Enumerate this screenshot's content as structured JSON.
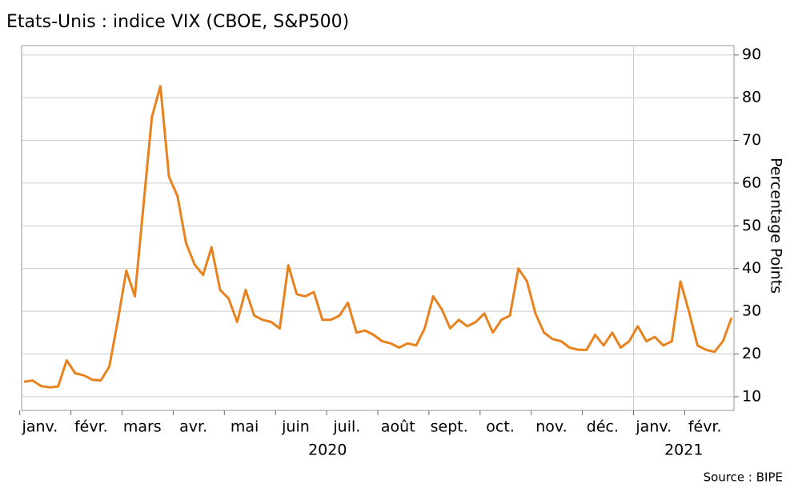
{
  "chart_data": {
    "type": "line",
    "title": "Etats-Unis : indice VIX (CBOE, S&P500)",
    "y_label": "Percentage Points",
    "source": "Source : BIPE",
    "categories": [
      null,
      null,
      null,
      "janv.",
      null,
      null,
      null,
      null,
      null,
      "févr.",
      null,
      null,
      null,
      null,
      null,
      "mars",
      null,
      null,
      null,
      null,
      null,
      "avr.",
      null,
      null,
      null,
      null,
      null,
      "mai",
      null,
      null,
      null,
      null,
      null,
      "juin",
      null,
      null,
      null,
      null,
      null,
      "juil.",
      null,
      null,
      null,
      null,
      null,
      "août",
      null,
      null,
      null,
      null,
      null,
      "sept.",
      null,
      null,
      null,
      null,
      null,
      "oct.",
      null,
      null,
      null,
      null,
      null,
      "nov.",
      null,
      null,
      null,
      null,
      null,
      "déc.",
      null,
      null,
      null,
      null,
      null,
      "janv.",
      null,
      null,
      null,
      null,
      null,
      "févr.",
      null,
      null
    ],
    "years": [
      "2020",
      "2021"
    ],
    "series": [
      {
        "name": "VIX",
        "color": "#e8821e",
        "values": [
          13.5,
          13.8,
          12.5,
          12.2,
          12.4,
          18.5,
          15.5,
          15.0,
          14.0,
          13.8,
          17,
          27.8,
          39.5,
          33.5,
          54.5,
          75.5,
          82.7,
          61.5,
          57,
          46,
          41,
          38.5,
          45,
          35,
          33,
          27.5,
          35,
          29,
          28,
          27.5,
          26,
          40.8,
          34,
          33.5,
          34.5,
          28,
          28,
          29,
          32,
          25,
          25.5,
          24.5,
          23,
          22.5,
          21.5,
          22.5,
          22,
          26,
          33.5,
          30.5,
          26,
          28,
          26.5,
          27.5,
          29.5,
          25,
          28,
          29,
          40,
          37,
          29.5,
          25,
          23.5,
          23,
          21.5,
          21,
          21,
          24.5,
          22,
          25,
          21.5,
          23,
          26.5,
          23,
          24,
          22,
          23,
          37,
          30,
          22,
          21,
          20.5,
          23,
          28.5
        ]
      }
    ],
    "ylim": [
      6.8,
      92.2
    ],
    "yticks": [
      10,
      20,
      30,
      40,
      50,
      60,
      70,
      80,
      90
    ],
    "grid": true
  }
}
